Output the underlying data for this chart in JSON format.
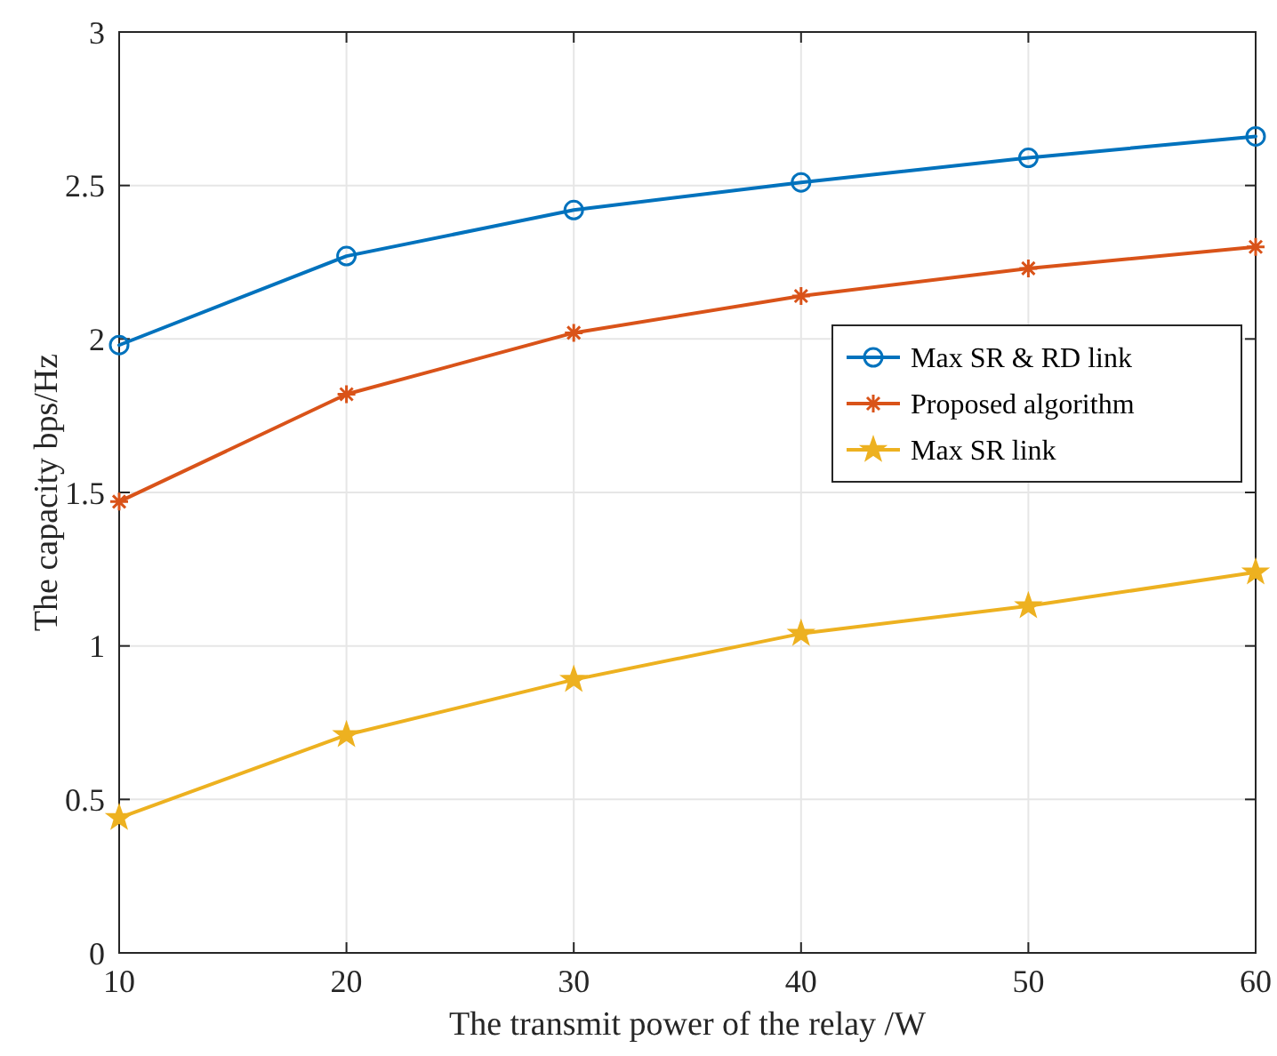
{
  "chart_data": {
    "type": "line",
    "xlabel": "The transmit power of the relay /W",
    "ylabel": "The capacity bps/Hz",
    "x": [
      10,
      20,
      30,
      40,
      50,
      60
    ],
    "series": [
      {
        "name": "Max SR & RD link",
        "color": "#0072bd",
        "marker": "circle",
        "values": [
          1.98,
          2.27,
          2.42,
          2.51,
          2.59,
          2.66
        ]
      },
      {
        "name": "Proposed algorithm",
        "color": "#d95319",
        "marker": "cross",
        "values": [
          1.47,
          1.82,
          2.02,
          2.14,
          2.23,
          2.3
        ]
      },
      {
        "name": "Max SR link",
        "color": "#edb120",
        "marker": "star",
        "values": [
          0.44,
          0.71,
          0.89,
          1.04,
          1.13,
          1.24
        ]
      }
    ],
    "xlim": [
      10,
      60
    ],
    "xticks": [
      10,
      20,
      30,
      40,
      50,
      60
    ],
    "ylim": [
      0,
      3
    ],
    "yticks": [
      0,
      0.5,
      1,
      1.5,
      2,
      2.5,
      3
    ],
    "grid": true,
    "legend": "right",
    "line_style": "solid"
  }
}
